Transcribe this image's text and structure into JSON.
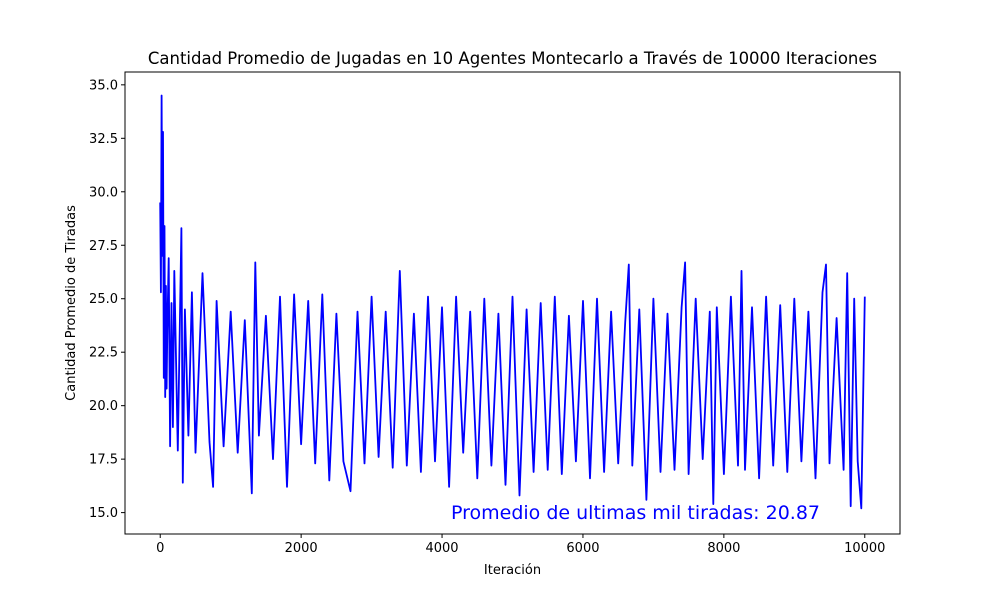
{
  "chart_data": {
    "type": "line",
    "title": "Cantidad Promedio de Jugadas en 10 Agentes Montecarlo a Través de 10000 Iteraciones",
    "xlabel": "Iteración",
    "ylabel": "Cantidad Promedio de Tiradas",
    "xlim": [
      -500,
      10500
    ],
    "ylim": [
      14.0,
      35.6
    ],
    "xticks": [
      0,
      2000,
      4000,
      6000,
      8000,
      10000
    ],
    "xtick_labels": [
      "0",
      "2000",
      "4000",
      "6000",
      "8000",
      "10000"
    ],
    "yticks": [
      15.0,
      17.5,
      20.0,
      22.5,
      25.0,
      27.5,
      30.0,
      32.5,
      35.0
    ],
    "ytick_labels": [
      "15.0",
      "17.5",
      "20.0",
      "22.5",
      "25.0",
      "27.5",
      "30.0",
      "32.5",
      "35.0"
    ],
    "grid": false,
    "legend": "none",
    "series": [
      {
        "color": "#0000ff",
        "x": [
          0,
          10,
          20,
          30,
          40,
          50,
          60,
          70,
          80,
          90,
          100,
          120,
          140,
          160,
          180,
          200,
          250,
          300,
          320,
          350,
          400,
          450,
          500,
          600,
          700,
          750,
          800,
          900,
          1000,
          1100,
          1200,
          1300,
          1350,
          1400,
          1500,
          1600,
          1700,
          1800,
          1900,
          2000,
          2100,
          2200,
          2300,
          2400,
          2500,
          2600,
          2700,
          2800,
          2900,
          3000,
          3100,
          3200,
          3300,
          3400,
          3500,
          3600,
          3700,
          3800,
          3900,
          4000,
          4100,
          4200,
          4300,
          4400,
          4500,
          4600,
          4700,
          4800,
          4900,
          5000,
          5100,
          5200,
          5300,
          5400,
          5500,
          5600,
          5700,
          5800,
          5900,
          6000,
          6100,
          6200,
          6300,
          6400,
          6500,
          6600,
          6650,
          6700,
          6800,
          6900,
          7000,
          7100,
          7200,
          7300,
          7400,
          7450,
          7500,
          7600,
          7700,
          7800,
          7850,
          7900,
          8000,
          8100,
          8200,
          8250,
          8300,
          8400,
          8500,
          8600,
          8700,
          8800,
          8900,
          9000,
          9100,
          9200,
          9300,
          9400,
          9450,
          9500,
          9600,
          9700,
          9750,
          9800,
          9850,
          9900,
          9950,
          10000
        ],
        "y": [
          29.5,
          25.3,
          34.5,
          27.0,
          32.8,
          21.3,
          28.4,
          20.4,
          25.6,
          20.8,
          23.5,
          26.9,
          18.1,
          24.8,
          19.0,
          26.3,
          17.9,
          28.3,
          16.4,
          24.5,
          18.6,
          25.3,
          17.8,
          26.2,
          18.3,
          16.2,
          24.9,
          18.1,
          24.4,
          17.8,
          24.0,
          15.9,
          26.7,
          18.6,
          24.2,
          17.5,
          25.1,
          16.2,
          25.2,
          18.2,
          24.9,
          17.3,
          25.2,
          16.5,
          24.3,
          17.4,
          16.0,
          24.4,
          17.3,
          25.1,
          17.6,
          24.4,
          17.1,
          26.3,
          17.2,
          24.3,
          16.9,
          25.1,
          17.4,
          24.6,
          16.2,
          25.1,
          17.8,
          24.4,
          16.6,
          25.0,
          17.2,
          24.3,
          16.3,
          25.1,
          15.8,
          24.5,
          16.9,
          24.8,
          17.0,
          25.1,
          16.8,
          24.2,
          17.4,
          24.9,
          16.6,
          25.0,
          16.9,
          24.4,
          17.3,
          23.9,
          26.6,
          17.2,
          24.5,
          15.6,
          25.0,
          16.9,
          24.3,
          17.0,
          24.6,
          26.7,
          16.8,
          25.0,
          17.5,
          24.4,
          15.4,
          24.6,
          16.8,
          25.1,
          17.2,
          26.3,
          17.0,
          24.6,
          16.6,
          25.1,
          17.2,
          24.7,
          16.9,
          25.0,
          17.4,
          24.4,
          16.6,
          25.3,
          26.6,
          17.3,
          24.1,
          17.0,
          26.2,
          15.3,
          25.0,
          17.4,
          15.2,
          25.1
        ]
      }
    ],
    "annotation": {
      "text": "Promedio de ultimas mil tiradas: 20.87",
      "color": "#0000ff"
    }
  }
}
